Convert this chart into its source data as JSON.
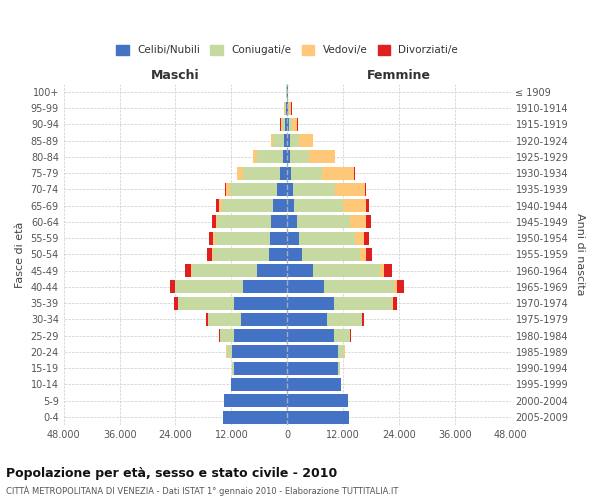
{
  "age_groups": [
    "0-4",
    "5-9",
    "10-14",
    "15-19",
    "20-24",
    "25-29",
    "30-34",
    "35-39",
    "40-44",
    "45-49",
    "50-54",
    "55-59",
    "60-64",
    "65-69",
    "70-74",
    "75-79",
    "80-84",
    "85-89",
    "90-94",
    "95-99",
    "100+"
  ],
  "birth_years": [
    "2005-2009",
    "2000-2004",
    "1995-1999",
    "1990-1994",
    "1985-1989",
    "1980-1984",
    "1975-1979",
    "1970-1974",
    "1965-1969",
    "1960-1964",
    "1955-1959",
    "1950-1954",
    "1945-1949",
    "1940-1944",
    "1935-1939",
    "1930-1934",
    "1925-1929",
    "1920-1924",
    "1915-1919",
    "1910-1914",
    "≤ 1909"
  ],
  "males": {
    "celibi": [
      13800,
      13500,
      12000,
      11500,
      11800,
      11500,
      10000,
      11500,
      9500,
      6500,
      4000,
      3800,
      3500,
      3000,
      2200,
      1500,
      1000,
      600,
      400,
      200,
      100
    ],
    "coniugati": [
      30,
      50,
      100,
      300,
      1200,
      3000,
      7000,
      12000,
      14500,
      14000,
      12000,
      11800,
      11500,
      11000,
      10000,
      8000,
      5500,
      2500,
      800,
      300,
      50
    ],
    "vedovi": [
      0,
      0,
      0,
      0,
      100,
      30,
      40,
      60,
      80,
      100,
      150,
      250,
      400,
      700,
      900,
      1200,
      800,
      400,
      200,
      100,
      20
    ],
    "divorziati": [
      0,
      0,
      0,
      10,
      50,
      100,
      300,
      700,
      1200,
      1400,
      1100,
      900,
      800,
      600,
      300,
      150,
      100,
      80,
      50,
      30,
      10
    ]
  },
  "females": {
    "nubili": [
      13200,
      13000,
      11500,
      11000,
      11000,
      10000,
      8500,
      10000,
      8000,
      5500,
      3200,
      2500,
      2000,
      1500,
      1200,
      900,
      700,
      500,
      300,
      150,
      80
    ],
    "coniugate": [
      30,
      50,
      100,
      400,
      1300,
      3500,
      7500,
      12500,
      15000,
      14500,
      12500,
      12000,
      11500,
      10500,
      9000,
      6500,
      4000,
      2000,
      700,
      250,
      60
    ],
    "vedove": [
      0,
      0,
      0,
      0,
      150,
      80,
      150,
      300,
      500,
      800,
      1200,
      2000,
      3500,
      5000,
      6500,
      7000,
      5500,
      3000,
      1200,
      500,
      100
    ],
    "divorziate": [
      0,
      0,
      0,
      10,
      60,
      150,
      400,
      900,
      1600,
      1800,
      1300,
      1100,
      900,
      500,
      250,
      150,
      100,
      80,
      50,
      30,
      10
    ]
  },
  "colors": {
    "celibi_nubili": "#4472c4",
    "coniugati_e": "#c5d9a0",
    "vedovi_e": "#ffc878",
    "divorziati_e": "#e02020"
  },
  "xlim": 48000,
  "xlabel_left": "Maschi",
  "xlabel_right": "Femmine",
  "ylabel_left": "Fasce di età",
  "ylabel_right": "Anni di nascita",
  "title": "Popolazione per età, sesso e stato civile - 2010",
  "subtitle": "CITTÀ METROPOLITANA DI VENEZIA - Dati ISTAT 1° gennaio 2010 - Elaborazione TUTTITALIA.IT",
  "legend_labels": [
    "Celibi/Nubili",
    "Coniugati/e",
    "Vedovi/e",
    "Divorziati/e"
  ],
  "background_color": "#ffffff",
  "grid_color": "#cccccc"
}
